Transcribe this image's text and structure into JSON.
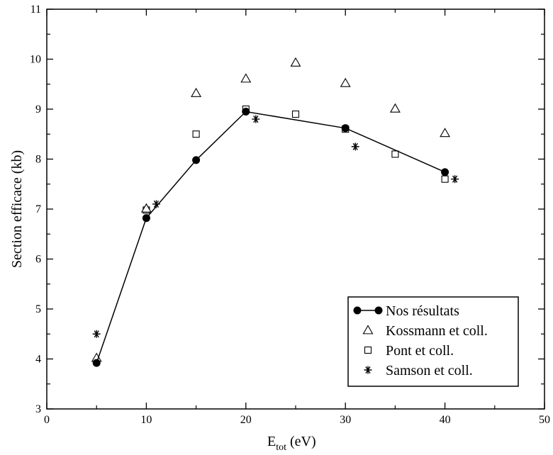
{
  "chart_data": {
    "type": "scatter",
    "xlabel_main": "E",
    "xlabel_sub": "tot",
    "xlabel_unit": " (eV)",
    "ylabel": "Section efficace (kb)",
    "xlim": [
      0,
      50
    ],
    "ylim": [
      3,
      11
    ],
    "xticks": [
      "0",
      "10",
      "20",
      "30",
      "40",
      "50"
    ],
    "yticks": [
      "3",
      "4",
      "5",
      "6",
      "7",
      "8",
      "9",
      "10",
      "11"
    ],
    "grid": false,
    "legend_position": "bottom-right",
    "series": [
      {
        "name": "Nos résultats",
        "marker": "filled-circle",
        "line": true,
        "color": "#000000",
        "x": [
          5,
          10,
          15,
          20,
          30,
          40
        ],
        "y": [
          3.92,
          6.82,
          7.98,
          8.95,
          8.62,
          7.74
        ]
      },
      {
        "name": "Kossmann et coll.",
        "marker": "open-triangle",
        "line": false,
        "color": "#000000",
        "x": [
          5,
          10,
          15,
          20,
          25,
          30,
          35,
          40
        ],
        "y": [
          4.02,
          7.01,
          9.32,
          9.61,
          9.93,
          9.52,
          9.01,
          8.52
        ]
      },
      {
        "name": "Pont et coll.",
        "marker": "open-square",
        "line": false,
        "color": "#000000",
        "x": [
          10,
          15,
          20,
          25,
          30,
          35,
          40
        ],
        "y": [
          6.98,
          8.5,
          9.0,
          8.9,
          8.6,
          8.1,
          7.6
        ]
      },
      {
        "name": "Samson et coll.",
        "marker": "asterisk",
        "line": false,
        "color": "#000000",
        "x": [
          5,
          11,
          21,
          31,
          41
        ],
        "y": [
          4.5,
          7.1,
          8.8,
          8.25,
          7.6
        ]
      }
    ]
  }
}
